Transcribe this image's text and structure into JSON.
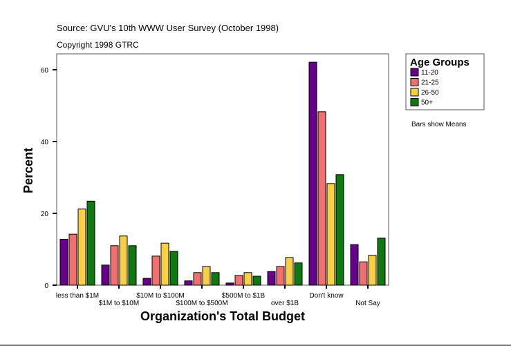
{
  "chart_data": {
    "type": "bar",
    "title": "Source: GVU's 10th WWW User Survey (October 1998)",
    "subtitle": "Copyright 1998 GTRC",
    "xlabel": "Organization's Total Budget",
    "ylabel": "Percent",
    "ylim": [
      0,
      64
    ],
    "yticks": [
      0,
      20,
      40,
      60
    ],
    "grid": false,
    "legend_title": "Age Groups",
    "legend_placement": "right",
    "note": "Bars show Means",
    "categories": [
      "less than $1M",
      "$1M to $10M",
      "$10M to $100M",
      "$100M to $500M",
      "$500M to $1B",
      "over $1B",
      "Don't know",
      "Not Say"
    ],
    "series": [
      {
        "name": "11-20",
        "color": "#660088",
        "values": [
          12.8,
          5.6,
          1.9,
          1.2,
          0.6,
          3.8,
          62.1,
          11.3
        ]
      },
      {
        "name": "21-25",
        "color": "#f07070",
        "values": [
          14.2,
          11.0,
          8.1,
          3.5,
          2.7,
          5.2,
          48.3,
          6.5
        ]
      },
      {
        "name": "26-50",
        "color": "#f8d048",
        "values": [
          21.2,
          13.7,
          11.7,
          5.2,
          3.5,
          7.7,
          28.3,
          8.3
        ]
      },
      {
        "name": "50+",
        "color": "#107810",
        "values": [
          23.4,
          11.0,
          9.4,
          3.5,
          2.5,
          6.2,
          30.8,
          13.1
        ]
      }
    ]
  }
}
